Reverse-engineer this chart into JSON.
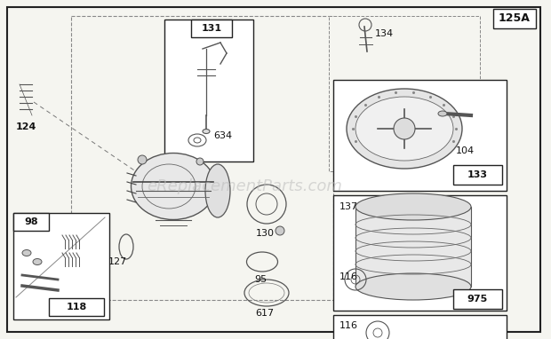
{
  "bg_color": "#f5f5f0",
  "border_color": "#222222",
  "label_color": "#111111",
  "gray": "#555555",
  "light_gray": "#888888",
  "watermark": "eReplacementParts.com",
  "watermark_color": "#bbbbbb"
}
